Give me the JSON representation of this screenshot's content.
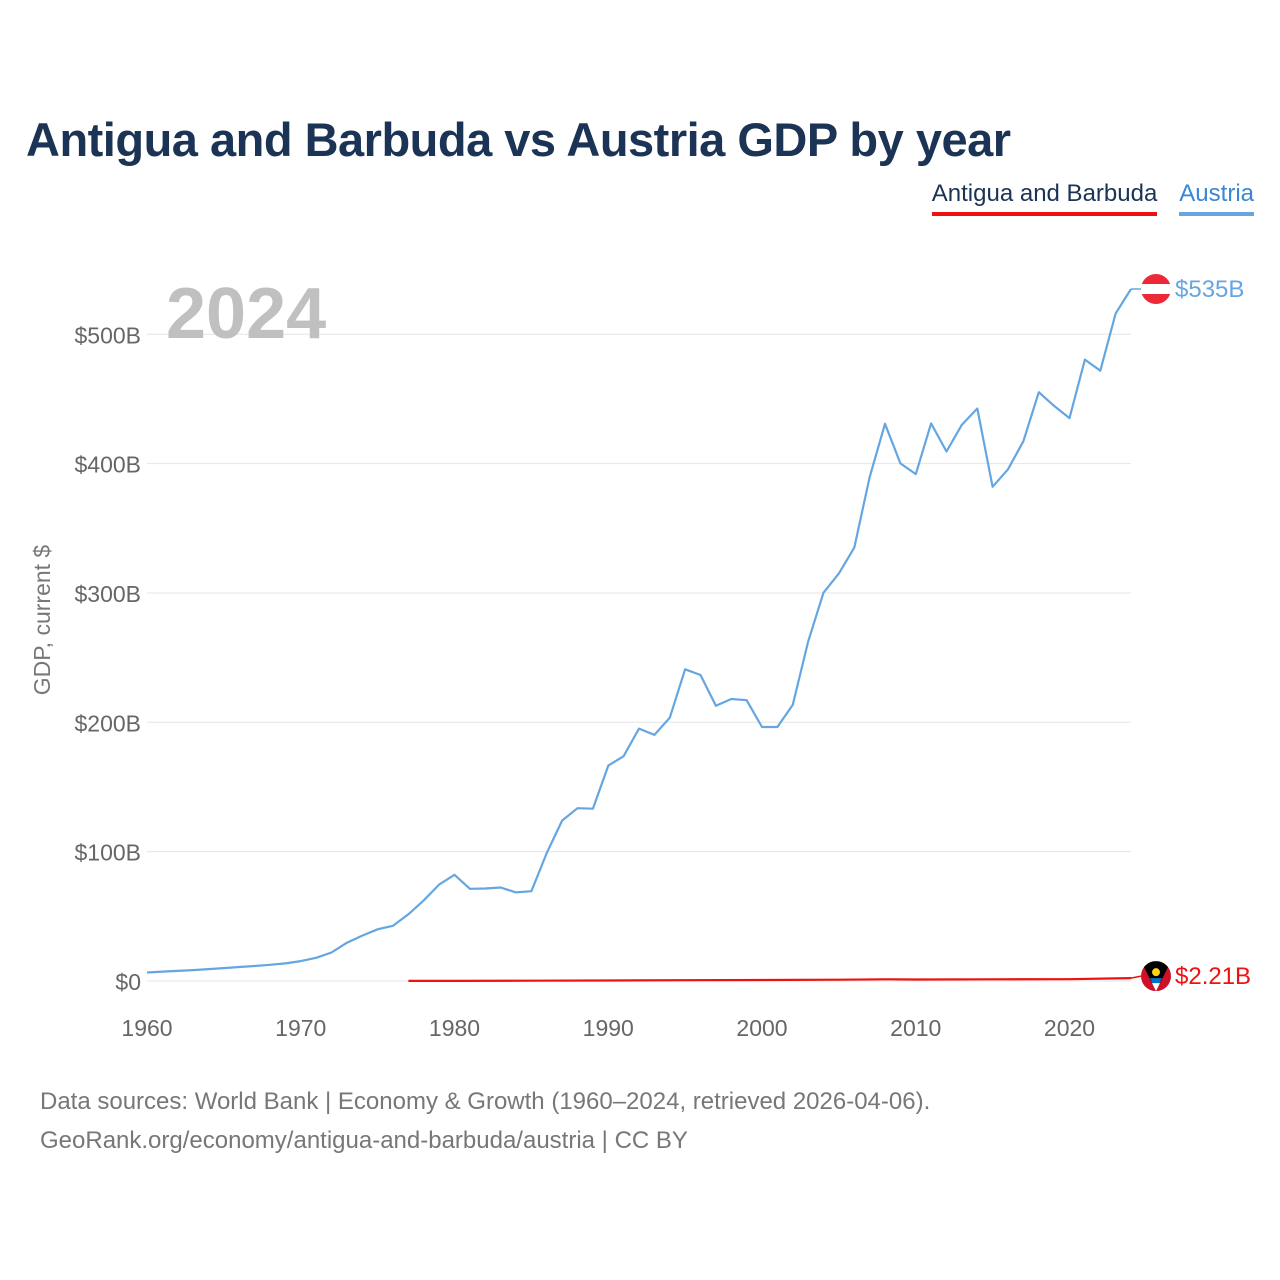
{
  "title": "Antigua and Barbuda vs Austria GDP by year",
  "legend": [
    {
      "label": "Antigua and Barbuda",
      "color": "#ee1111"
    },
    {
      "label": "Austria",
      "color": "#65a6e2"
    }
  ],
  "year_watermark": "2024",
  "end_labels": {
    "austria": "$535B",
    "antigua": "$2.21B"
  },
  "footer": {
    "line1": "Data sources: World Bank | Economy & Growth (1960–2024, retrieved 2026-04-06).",
    "line2": "GeoRank.org/economy/antigua-and-barbuda/austria | CC BY"
  },
  "chart_data": {
    "type": "line",
    "title": "Antigua and Barbuda vs Austria GDP by year",
    "xlabel": "",
    "ylabel": "GDP, current $",
    "xlim": [
      1960,
      2024
    ],
    "ylim": [
      0,
      535
    ],
    "y_unit": "billion USD",
    "x_ticks": [
      1960,
      1970,
      1980,
      1990,
      2000,
      2010,
      2020
    ],
    "y_ticks": [
      {
        "value": 0,
        "label": "$0"
      },
      {
        "value": 100,
        "label": "$100B"
      },
      {
        "value": 200,
        "label": "$200B"
      },
      {
        "value": 300,
        "label": "$300B"
      },
      {
        "value": 400,
        "label": "$400B"
      },
      {
        "value": 500,
        "label": "$500B"
      }
    ],
    "grid": true,
    "series": [
      {
        "name": "Austria",
        "color": "#65a6e2",
        "x": [
          1960,
          1961,
          1962,
          1963,
          1964,
          1965,
          1966,
          1967,
          1968,
          1969,
          1970,
          1971,
          1972,
          1973,
          1974,
          1975,
          1976,
          1977,
          1978,
          1979,
          1980,
          1981,
          1982,
          1983,
          1984,
          1985,
          1986,
          1987,
          1988,
          1989,
          1990,
          1991,
          1992,
          1993,
          1994,
          1995,
          1996,
          1997,
          1998,
          1999,
          2000,
          2001,
          2002,
          2003,
          2004,
          2005,
          2006,
          2007,
          2008,
          2009,
          2010,
          2011,
          2012,
          2013,
          2014,
          2015,
          2016,
          2017,
          2018,
          2019,
          2020,
          2021,
          2022,
          2023,
          2024
        ],
        "values": [
          6.6,
          7.3,
          7.8,
          8.4,
          9.2,
          10.0,
          10.8,
          11.6,
          12.5,
          13.6,
          15.4,
          17.9,
          22.0,
          29.6,
          35.1,
          40.0,
          42.7,
          51.6,
          62.4,
          74.5,
          82.1,
          71.3,
          71.5,
          72.3,
          68.5,
          69.4,
          99.0,
          124.0,
          133.6,
          133.2,
          166.5,
          173.8,
          195.1,
          190.3,
          203.6,
          241.0,
          236.6,
          212.8,
          218.0,
          217.1,
          196.4,
          196.4,
          213.6,
          262.3,
          300.2,
          315.1,
          335.1,
          389.4,
          430.8,
          400.2,
          391.9,
          431.1,
          409.4,
          430.1,
          442.6,
          382.1,
          395.6,
          417.3,
          455.2,
          444.6,
          435.2,
          480.4,
          471.8,
          516.0,
          535.0
        ]
      },
      {
        "name": "Antigua and Barbuda",
        "color": "#ee1111",
        "x": [
          1977,
          1980,
          1985,
          1990,
          1995,
          2000,
          2005,
          2008,
          2010,
          2015,
          2020,
          2023,
          2024
        ],
        "values": [
          0.08,
          0.1,
          0.2,
          0.4,
          0.6,
          0.8,
          1.0,
          1.35,
          1.15,
          1.35,
          1.4,
          2.0,
          2.21
        ]
      }
    ]
  }
}
